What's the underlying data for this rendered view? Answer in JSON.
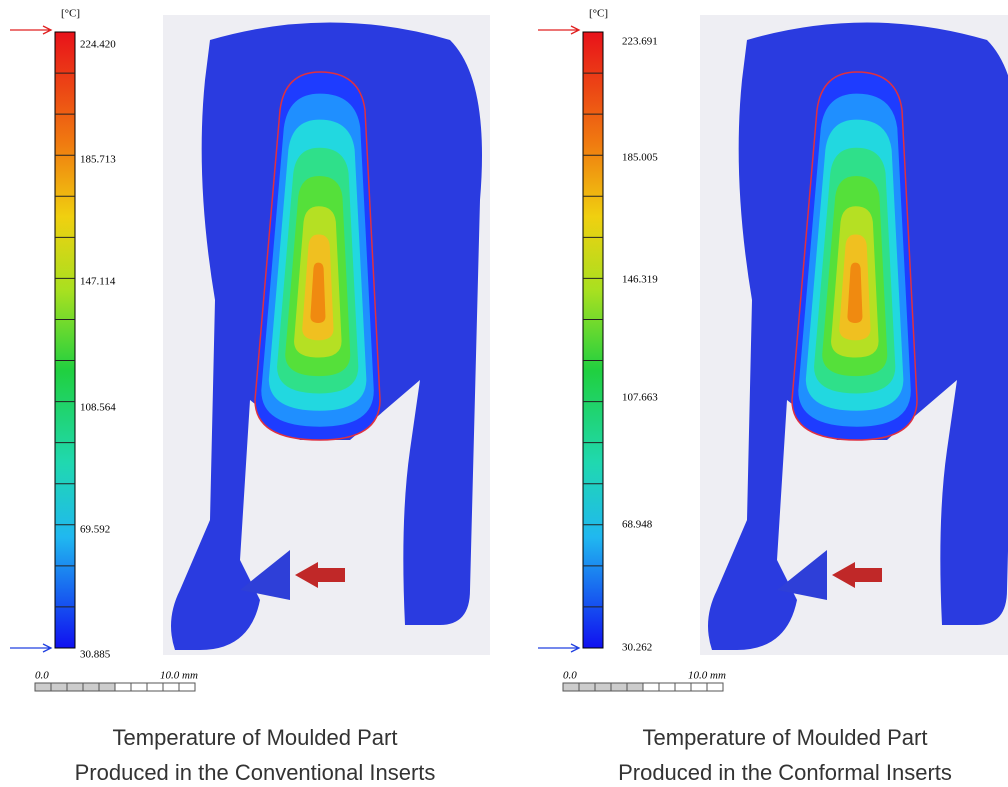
{
  "panels": [
    {
      "unit": "[°C]",
      "scale_labels": [
        "224.420",
        "185.713",
        "147.114",
        "108.564",
        "69.592",
        "30.885"
      ],
      "scalebar": {
        "start": "0.0",
        "end": "10.0 mm"
      },
      "caption": [
        "Temperature of Moulded Part",
        "Produced in the Conventional Inserts"
      ]
    },
    {
      "unit": "[°C]",
      "scale_labels": [
        "223.691",
        "185.005",
        "146.319",
        "107.663",
        "68.948",
        "30.262"
      ],
      "scalebar": {
        "start": "0.0",
        "end": "10.0 mm"
      },
      "caption": [
        "Temperature of Moulded Part",
        "Produced in the Conformal Inserts"
      ]
    }
  ]
}
